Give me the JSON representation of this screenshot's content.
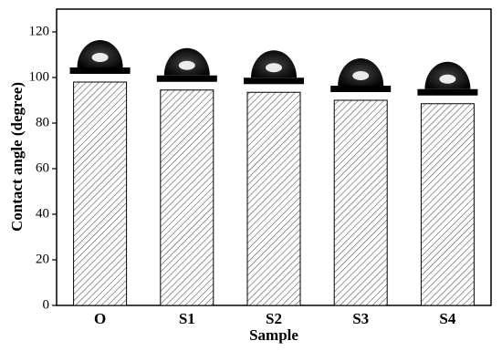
{
  "chart_data": {
    "type": "bar",
    "categories": [
      "O",
      "S1",
      "S2",
      "S3",
      "S4"
    ],
    "values": [
      98,
      94.5,
      93.5,
      90,
      88.5
    ],
    "color": "#555555",
    "xlabel": "Sample",
    "ylabel": "Contact angle (degree)",
    "ylim": [
      0,
      130
    ],
    "yticks": [
      0,
      20,
      40,
      60,
      80,
      100,
      120
    ],
    "grid": false
  }
}
